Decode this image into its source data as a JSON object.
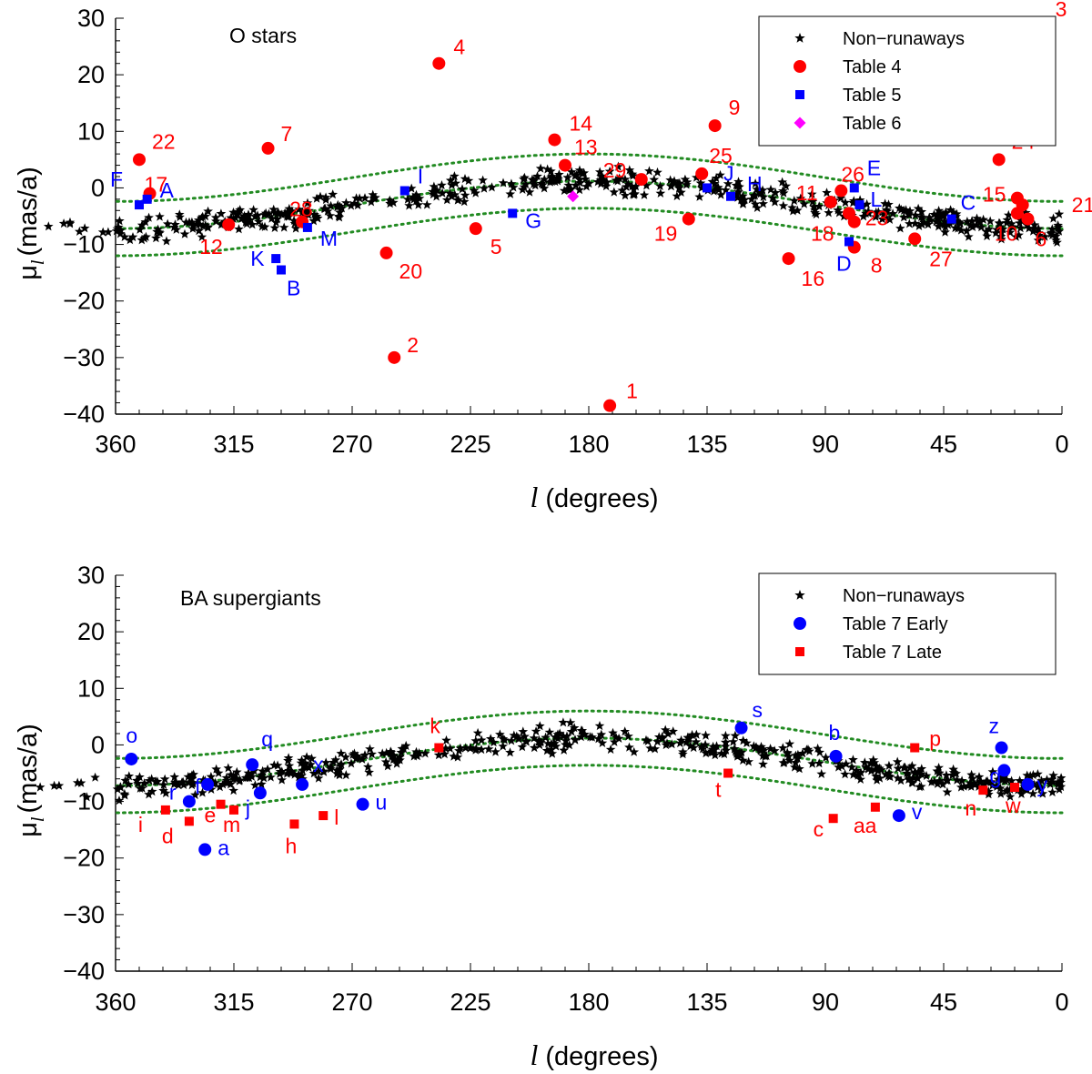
{
  "colors": {
    "non_runaway": "#000000",
    "red": "#ff0000",
    "blue": "#0000ff",
    "magenta": "#ff00ff",
    "envelope": "#228b22"
  },
  "chart_data": [
    {
      "type": "scatter",
      "title": "O stars",
      "xlabel_var": "l",
      "xlabel_unit": "(degrees)",
      "ylabel_var": "μ",
      "ylabel_sub": "l",
      "ylabel_unit": "(mas/a)",
      "xlim": [
        360,
        0
      ],
      "ylim": [
        -40,
        30
      ],
      "xticks": [
        360,
        315,
        270,
        225,
        180,
        135,
        90,
        45,
        0
      ],
      "yticks": [
        30,
        20,
        10,
        0,
        -10,
        -20,
        -30,
        -40
      ],
      "legend_position": "top-right",
      "legend": [
        {
          "label": "Non−runaways",
          "marker": "star",
          "color": "#000000"
        },
        {
          "label": "Table 4",
          "marker": "circle",
          "color": "#ff0000"
        },
        {
          "label": "Table 5",
          "marker": "square",
          "color": "#0000ff"
        },
        {
          "label": "Table 6",
          "marker": "diamond",
          "color": "#ff00ff"
        }
      ],
      "envelope_curves": [
        {
          "amp": 4.2,
          "offset": -3.0,
          "phase_deg": 180
        },
        {
          "amp": 4.2,
          "offset": 1.8,
          "phase_deg": 180
        },
        {
          "amp": 4.2,
          "offset": -7.8,
          "phase_deg": 180
        }
      ],
      "non_runaways_spread": 1.8,
      "series": [
        {
          "name": "Table 4",
          "marker": "circle",
          "color": "#ff0000",
          "points": [
            {
              "id": "1",
              "l": 172,
              "mu": -38.5
            },
            {
              "id": "2",
              "l": 254,
              "mu": -30
            },
            {
              "id": "3",
              "l": 6,
              "mu": 29
            },
            {
              "id": "4",
              "l": 237,
              "mu": 22
            },
            {
              "id": "5",
              "l": 223,
              "mu": -7.2
            },
            {
              "id": "6",
              "l": 13,
              "mu": -5.5
            },
            {
              "id": "7",
              "l": 302,
              "mu": 7
            },
            {
              "id": "8",
              "l": 79,
              "mu": -10.5
            },
            {
              "id": "9",
              "l": 132,
              "mu": 11
            },
            {
              "id": "10",
              "l": 17,
              "mu": -4.5
            },
            {
              "id": "11",
              "l": 88,
              "mu": -2.5
            },
            {
              "id": "12",
              "l": 317,
              "mu": -6.5
            },
            {
              "id": "13",
              "l": 189,
              "mu": 4
            },
            {
              "id": "14",
              "l": 193,
              "mu": 8.5
            },
            {
              "id": "15",
              "l": 17,
              "mu": -1.8
            },
            {
              "id": "16",
              "l": 104,
              "mu": -12.5
            },
            {
              "id": "17",
              "l": 347,
              "mu": -1
            },
            {
              "id": "18",
              "l": 81,
              "mu": -4.5
            },
            {
              "id": "19",
              "l": 142,
              "mu": -5.5
            },
            {
              "id": "20",
              "l": 257,
              "mu": -11.5
            },
            {
              "id": "21",
              "l": 15,
              "mu": -3
            },
            {
              "id": "22",
              "l": 351,
              "mu": 5
            },
            {
              "id": "23",
              "l": 79,
              "mu": -6
            },
            {
              "id": "24",
              "l": 24,
              "mu": 5
            },
            {
              "id": "25",
              "l": 137,
              "mu": 2.5
            },
            {
              "id": "26",
              "l": 84,
              "mu": -0.5
            },
            {
              "id": "27",
              "l": 56,
              "mu": -9
            },
            {
              "id": "28",
              "l": 289,
              "mu": -6
            },
            {
              "id": "29",
              "l": 160,
              "mu": 1.5
            }
          ]
        },
        {
          "name": "Table 5",
          "marker": "square",
          "color": "#0000ff",
          "points": [
            {
              "id": "A",
              "l": 348,
              "mu": -2
            },
            {
              "id": "B",
              "l": 297,
              "mu": -14.5
            },
            {
              "id": "C",
              "l": 42,
              "mu": -5.5
            },
            {
              "id": "D",
              "l": 81,
              "mu": -9.5
            },
            {
              "id": "E",
              "l": 79,
              "mu": 0
            },
            {
              "id": "F",
              "l": 351,
              "mu": -3
            },
            {
              "id": "G",
              "l": 209,
              "mu": -4.5
            },
            {
              "id": "H",
              "l": 126,
              "mu": -1.5
            },
            {
              "id": "I",
              "l": 250,
              "mu": -0.5
            },
            {
              "id": "J",
              "l": 135,
              "mu": 0
            },
            {
              "id": "K",
              "l": 299,
              "mu": -12.5
            },
            {
              "id": "L",
              "l": 77,
              "mu": -3
            },
            {
              "id": "M",
              "l": 287,
              "mu": -7
            }
          ]
        },
        {
          "name": "Table 6",
          "marker": "diamond",
          "color": "#ff00ff",
          "points": [
            {
              "id": "",
              "l": 186,
              "mu": -1.5
            }
          ]
        }
      ]
    },
    {
      "type": "scatter",
      "title": "BA supergiants",
      "xlabel_var": "l",
      "xlabel_unit": "(degrees)",
      "ylabel_var": "μ",
      "ylabel_sub": "l",
      "ylabel_unit": "(mas/a)",
      "xlim": [
        360,
        0
      ],
      "ylim": [
        -40,
        30
      ],
      "xticks": [
        360,
        315,
        270,
        225,
        180,
        135,
        90,
        45,
        0
      ],
      "yticks": [
        30,
        20,
        10,
        0,
        -10,
        -20,
        -30,
        -40
      ],
      "legend_position": "top-right",
      "legend": [
        {
          "label": "Non−runaways",
          "marker": "star",
          "color": "#000000"
        },
        {
          "label": "Table 7 Early",
          "marker": "circle",
          "color": "#0000ff"
        },
        {
          "label": "Table 7 Late",
          "marker": "square",
          "color": "#ff0000"
        }
      ],
      "envelope_curves": [
        {
          "amp": 4.2,
          "offset": -3.0,
          "phase_deg": 180
        },
        {
          "amp": 4.2,
          "offset": 1.8,
          "phase_deg": 180
        },
        {
          "amp": 4.2,
          "offset": -7.8,
          "phase_deg": 180
        }
      ],
      "non_runaways_spread": 1.8,
      "series": [
        {
          "name": "Table 7 Early",
          "marker": "circle",
          "color": "#0000ff",
          "points": [
            {
              "id": "a",
              "l": 326,
              "mu": -18.5
            },
            {
              "id": "b",
              "l": 86,
              "mu": -2
            },
            {
              "id": "f",
              "l": 325,
              "mu": -7
            },
            {
              "id": "j",
              "l": 305,
              "mu": -8.5
            },
            {
              "id": "o",
              "l": 354,
              "mu": -2.5
            },
            {
              "id": "q",
              "l": 308,
              "mu": -3.5
            },
            {
              "id": "r",
              "l": 332,
              "mu": -10
            },
            {
              "id": "s",
              "l": 122,
              "mu": 3
            },
            {
              "id": "u",
              "l": 266,
              "mu": -10.5
            },
            {
              "id": "v",
              "l": 62,
              "mu": -12.5
            },
            {
              "id": "x",
              "l": 289,
              "mu": -7
            },
            {
              "id": "y",
              "l": 13,
              "mu": -7
            },
            {
              "id": "z",
              "l": 23,
              "mu": -0.5
            },
            {
              "id": "g",
              "l": 22,
              "mu": -4.5
            }
          ]
        },
        {
          "name": "Table 7 Late",
          "marker": "square",
          "color": "#ff0000",
          "points": [
            {
              "id": "c",
              "l": 87,
              "mu": -13
            },
            {
              "id": "d",
              "l": 332,
              "mu": -13.5
            },
            {
              "id": "e",
              "l": 320,
              "mu": -10.5
            },
            {
              "id": "h",
              "l": 292,
              "mu": -14
            },
            {
              "id": "i",
              "l": 341,
              "mu": -11.5
            },
            {
              "id": "k",
              "l": 237,
              "mu": -0.5
            },
            {
              "id": "l",
              "l": 281,
              "mu": -12.5
            },
            {
              "id": "m",
              "l": 315,
              "mu": -11.5
            },
            {
              "id": "n",
              "l": 30,
              "mu": -8
            },
            {
              "id": "p",
              "l": 56,
              "mu": -0.5
            },
            {
              "id": "t",
              "l": 127,
              "mu": -5
            },
            {
              "id": "w",
              "l": 18,
              "mu": -7.5
            },
            {
              "id": "aa",
              "l": 71,
              "mu": -11
            }
          ]
        }
      ]
    }
  ]
}
